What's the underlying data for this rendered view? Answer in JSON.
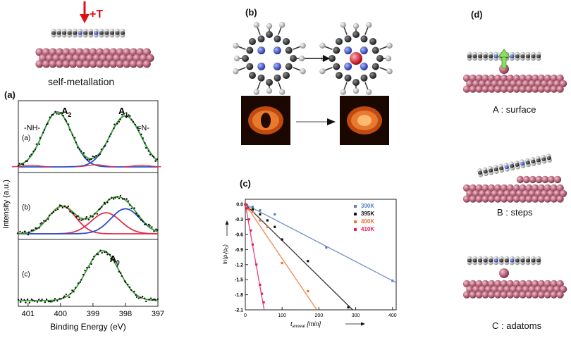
{
  "panels": {
    "a": {
      "label": "(a)",
      "top_caption": "self-metallation",
      "heat_label": "+T",
      "ylabel": "Intensity (a.u.)",
      "xlabel": "Binding Energy (eV)",
      "x_ticks": [
        "401",
        "400",
        "399",
        "398",
        "397"
      ],
      "sub_labels": [
        "(a)",
        "(b)",
        "(c)"
      ],
      "peak_labels": {
        "nh": "-NH-",
        "n": "=N-",
        "A2": "A",
        "A2sub": "2",
        "A1": "A",
        "A1sub": "1",
        "A0": "A",
        "A0sub": "0"
      }
    },
    "b": {
      "label": "(b)"
    },
    "c": {
      "label": "(c)"
    },
    "d": {
      "label": "(d)",
      "captions": [
        "A : surface",
        "B : steps",
        "C : adatoms"
      ]
    }
  },
  "chart_data": [
    {
      "type": "line",
      "panel": "a",
      "xlabel": "Binding Energy (eV)",
      "ylabel": "Intensity (a.u.)",
      "xlim": [
        401.3,
        397
      ],
      "x_reversed": true,
      "series": [
        {
          "panel_row": "(a)",
          "peaks": [
            {
              "center": 400.1,
              "height": 1.0,
              "width": 0.45
            },
            {
              "center": 398.0,
              "height": 0.93,
              "width": 0.48
            }
          ]
        },
        {
          "panel_row": "(b)",
          "peaks": [
            {
              "center": 399.95,
              "height": 0.55,
              "width": 0.42
            },
            {
              "center": 398.6,
              "height": 0.42,
              "width": 0.45
            },
            {
              "center": 398.0,
              "height": 0.5,
              "width": 0.45
            }
          ]
        },
        {
          "panel_row": "(c)",
          "peaks": [
            {
              "center": 398.7,
              "height": 1.0,
              "width": 0.5
            }
          ]
        }
      ]
    },
    {
      "type": "scatter",
      "panel": "c",
      "xlabel_main": "t",
      "xlabel_sub": "anneal",
      "xlabel_unit": "[min]",
      "ylabel": "ln(ρ",
      "ylabel_t": "t",
      "ylabel_mid": "/ρ",
      "ylabel_0": "0",
      "ylabel_end": ")",
      "xlim": [
        0,
        410
      ],
      "ylim": [
        -2.1,
        0.1
      ],
      "x_ticks": [
        0,
        100,
        200,
        300,
        400
      ],
      "y_ticks": [
        0.0,
        -0.3,
        -0.6,
        -0.9,
        -1.2,
        -1.5,
        -1.8,
        -2.1
      ],
      "y_tick_labels": [
        "0.0",
        "-0.3",
        "-0.6",
        "-0.9",
        "-1.2",
        "-1.5",
        "-1.8",
        "-2.1"
      ],
      "legend_position": "top-right",
      "series": [
        {
          "name": "390K",
          "color": "#5b7fc0",
          "x": [
            0,
            20,
            40,
            80,
            220,
            400
          ],
          "y": [
            0,
            -0.05,
            -0.12,
            -0.2,
            -0.86,
            -1.52
          ],
          "fit_slope": -0.0038
        },
        {
          "name": "395K",
          "color": "#111111",
          "x": [
            0,
            20,
            40,
            60,
            80,
            100,
            170,
            280
          ],
          "y": [
            0,
            -0.1,
            -0.2,
            -0.32,
            -0.45,
            -0.7,
            -1.13,
            -2.05
          ],
          "fit_slope": -0.0072
        },
        {
          "name": "400K",
          "color": "#f07030",
          "x": [
            0,
            10,
            20,
            40,
            60,
            100,
            170
          ],
          "y": [
            0,
            -0.1,
            -0.15,
            -0.32,
            -0.45,
            -1.17,
            -1.73
          ],
          "fit_slope": -0.0108
        },
        {
          "name": "410K",
          "color": "#e8205a",
          "x": [
            0,
            5,
            10,
            15,
            20,
            30,
            40,
            45,
            50
          ],
          "y": [
            0,
            -0.08,
            -0.3,
            -0.52,
            -0.8,
            -1.2,
            -1.6,
            -1.78,
            -1.95
          ],
          "fit_slope": -0.041
        }
      ]
    }
  ]
}
